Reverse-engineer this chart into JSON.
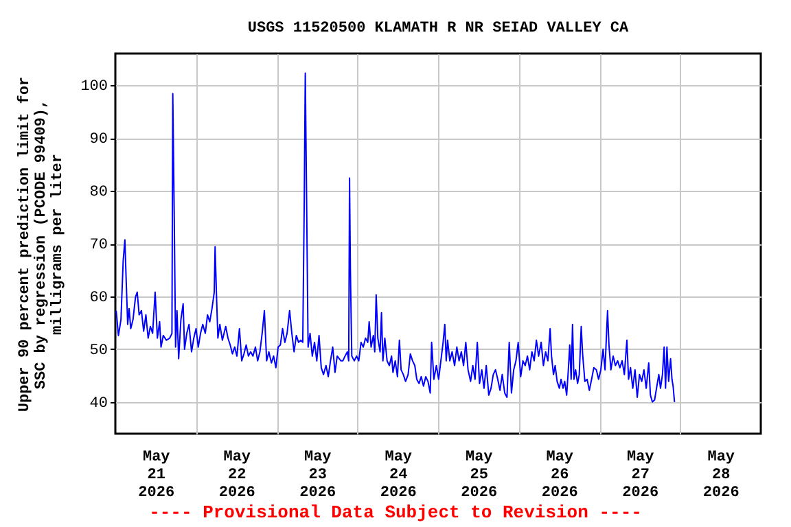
{
  "chart_data": {
    "type": "line",
    "title": "USGS 11520500 KLAMATH R NR SEIAD VALLEY CA",
    "ylabel": "Upper 90 percent prediction limit for\nSSC by regression (PCODE 99409),\nmilligrams per liter",
    "annotations": [
      "---- Provisional Data Subject to Revision ----"
    ],
    "xlim": [
      "2026-05-21",
      "2026-05-29"
    ],
    "ylim": [
      34,
      106
    ],
    "xticks": [
      {
        "value": "2026-05-21T12:00",
        "label": "May\n21\n2026"
      },
      {
        "value": "2026-05-22T12:00",
        "label": "May\n22\n2026"
      },
      {
        "value": "2026-05-23T12:00",
        "label": "May\n23\n2026"
      },
      {
        "value": "2026-05-24T12:00",
        "label": "May\n24\n2026"
      },
      {
        "value": "2026-05-25T12:00",
        "label": "May\n25\n2026"
      },
      {
        "value": "2026-05-26T12:00",
        "label": "May\n26\n2026"
      },
      {
        "value": "2026-05-27T12:00",
        "label": "May\n27\n2026"
      },
      {
        "value": "2026-05-28T12:00",
        "label": "May\n28\n2026"
      },
      {
        "value": "2026-05-22",
        "label": null
      },
      {
        "value": "2026-05-23",
        "label": null
      },
      {
        "value": "2026-05-24",
        "label": null
      },
      {
        "value": "2026-05-25",
        "label": null
      },
      {
        "value": "2026-05-26",
        "label": null
      },
      {
        "value": "2026-05-27",
        "label": null
      },
      {
        "value": "2026-05-28",
        "label": null
      }
    ],
    "yticks": [
      40,
      50,
      60,
      70,
      80,
      90,
      100
    ],
    "grid": true,
    "series": [
      {
        "color": "#0000ff",
        "x": [
          "2026-05-21T00:15",
          "2026-05-21T00:55",
          "2026-05-21T01:40",
          "2026-05-21T02:20",
          "2026-05-21T02:50",
          "2026-05-21T03:15",
          "2026-05-21T03:40",
          "2026-05-21T04:05",
          "2026-05-21T04:35",
          "2026-05-21T05:15",
          "2026-05-21T06:00",
          "2026-05-21T06:30",
          "2026-05-21T07:05",
          "2026-05-21T07:45",
          "2026-05-21T08:25",
          "2026-05-21T09:05",
          "2026-05-21T09:45",
          "2026-05-21T10:25",
          "2026-05-21T11:05",
          "2026-05-21T11:50",
          "2026-05-21T12:30",
          "2026-05-21T13:10",
          "2026-05-21T13:35",
          "2026-05-21T14:15",
          "2026-05-21T15:10",
          "2026-05-21T16:10",
          "2026-05-21T16:50",
          "2026-05-21T17:05",
          "2026-05-21T17:30",
          "2026-05-21T17:55",
          "2026-05-21T18:20",
          "2026-05-21T18:50",
          "2026-05-21T19:30",
          "2026-05-21T20:10",
          "2026-05-21T20:35",
          "2026-05-21T21:15",
          "2026-05-21T21:55",
          "2026-05-21T22:40",
          "2026-05-21T23:20",
          "2026-05-22T00:00",
          "2026-05-22T00:40",
          "2026-05-22T01:20",
          "2026-05-22T02:00",
          "2026-05-22T02:45",
          "2026-05-22T03:25",
          "2026-05-22T04:05",
          "2026-05-22T04:45",
          "2026-05-22T05:25",
          "2026-05-22T05:40",
          "2026-05-22T06:05",
          "2026-05-22T06:30",
          "2026-05-22T07:05",
          "2026-05-22T07:50",
          "2026-05-22T08:50",
          "2026-05-22T09:30",
          "2026-05-22T10:10",
          "2026-05-22T10:50",
          "2026-05-22T11:30",
          "2026-05-22T12:10",
          "2026-05-22T12:55",
          "2026-05-22T13:35",
          "2026-05-22T14:15",
          "2026-05-22T14:55",
          "2026-05-22T15:35",
          "2026-05-22T16:15",
          "2026-05-22T16:55",
          "2026-05-22T17:40",
          "2026-05-22T18:20",
          "2026-05-22T19:00",
          "2026-05-22T19:40",
          "2026-05-22T20:20",
          "2026-05-22T21:00",
          "2026-05-22T21:40",
          "2026-05-22T22:25",
          "2026-05-22T23:05",
          "2026-05-22T23:45",
          "2026-05-23T00:25",
          "2026-05-23T01:05",
          "2026-05-23T01:45",
          "2026-05-23T02:25",
          "2026-05-23T03:05",
          "2026-05-23T03:50",
          "2026-05-23T04:30",
          "2026-05-23T05:10",
          "2026-05-23T05:50",
          "2026-05-23T06:30",
          "2026-05-23T07:10",
          "2026-05-23T07:45",
          "2026-05-23T08:10",
          "2026-05-23T08:30",
          "2026-05-23T08:55",
          "2026-05-23T09:20",
          "2026-05-23T09:55",
          "2026-05-23T10:35",
          "2026-05-23T11:15",
          "2026-05-23T11:55",
          "2026-05-23T12:35",
          "2026-05-23T13:15",
          "2026-05-23T13:55",
          "2026-05-23T14:40",
          "2026-05-23T15:20",
          "2026-05-23T16:00",
          "2026-05-23T16:40",
          "2026-05-23T17:20",
          "2026-05-23T18:00",
          "2026-05-23T19:05",
          "2026-05-23T19:40",
          "2026-05-23T20:20",
          "2026-05-23T21:00",
          "2026-05-23T21:25",
          "2026-05-23T21:40",
          "2026-05-23T21:55",
          "2026-05-23T22:20",
          "2026-05-23T23:05",
          "2026-05-23T23:45",
          "2026-05-24T00:25",
          "2026-05-24T01:05",
          "2026-05-24T01:45",
          "2026-05-24T02:25",
          "2026-05-24T03:05",
          "2026-05-24T03:30",
          "2026-05-24T04:05",
          "2026-05-24T04:45",
          "2026-05-24T05:10",
          "2026-05-24T05:35",
          "2026-05-24T06:05",
          "2026-05-24T06:45",
          "2026-05-24T07:10",
          "2026-05-24T07:35",
          "2026-05-24T08:10",
          "2026-05-24T08:50",
          "2026-05-24T09:30",
          "2026-05-24T10:10",
          "2026-05-24T10:35",
          "2026-05-24T11:15",
          "2026-05-24T11:55",
          "2026-05-24T12:30",
          "2026-05-24T13:00",
          "2026-05-24T13:40",
          "2026-05-24T14:20",
          "2026-05-24T15:05",
          "2026-05-24T15:45",
          "2026-05-24T16:25",
          "2026-05-24T17:05",
          "2026-05-24T17:40",
          "2026-05-24T18:20",
          "2026-05-24T19:00",
          "2026-05-24T19:40",
          "2026-05-24T20:20",
          "2026-05-24T21:00",
          "2026-05-24T21:40",
          "2026-05-24T22:05",
          "2026-05-24T22:45",
          "2026-05-24T23:30",
          "2026-05-25T00:10",
          "2026-05-25T00:50",
          "2026-05-25T01:30",
          "2026-05-25T02:00",
          "2026-05-25T02:25",
          "2026-05-25T02:50",
          "2026-05-25T03:30",
          "2026-05-25T04:10",
          "2026-05-25T04:55",
          "2026-05-25T05:35",
          "2026-05-25T06:15",
          "2026-05-25T06:55",
          "2026-05-25T07:35",
          "2026-05-25T08:15",
          "2026-05-25T08:55",
          "2026-05-25T09:40",
          "2026-05-25T10:20",
          "2026-05-25T11:00",
          "2026-05-25T11:40",
          "2026-05-25T12:20",
          "2026-05-25T13:00",
          "2026-05-25T13:40",
          "2026-05-25T14:20",
          "2026-05-25T15:05",
          "2026-05-25T15:45",
          "2026-05-25T16:25",
          "2026-05-25T17:05",
          "2026-05-25T17:45",
          "2026-05-25T18:25",
          "2026-05-25T19:05",
          "2026-05-25T19:50",
          "2026-05-25T20:30",
          "2026-05-25T21:10",
          "2026-05-25T21:50",
          "2026-05-25T22:30",
          "2026-05-25T23:10",
          "2026-05-25T23:50",
          "2026-05-26T00:35",
          "2026-05-26T01:15",
          "2026-05-26T01:55",
          "2026-05-26T02:35",
          "2026-05-26T03:15",
          "2026-05-26T03:55",
          "2026-05-26T04:35",
          "2026-05-26T05:15",
          "2026-05-26T05:55",
          "2026-05-26T06:40",
          "2026-05-26T07:20",
          "2026-05-26T08:00",
          "2026-05-26T08:40",
          "2026-05-26T09:20",
          "2026-05-26T09:45",
          "2026-05-26T10:20",
          "2026-05-26T10:50",
          "2026-05-26T11:25",
          "2026-05-26T12:05",
          "2026-05-26T12:35",
          "2026-05-26T13:10",
          "2026-05-26T13:40",
          "2026-05-26T14:15",
          "2026-05-26T14:45",
          "2026-05-26T15:10",
          "2026-05-26T15:35",
          "2026-05-26T16:00",
          "2026-05-26T16:25",
          "2026-05-26T16:55",
          "2026-05-26T17:30",
          "2026-05-26T18:00",
          "2026-05-26T18:35",
          "2026-05-26T19:00",
          "2026-05-26T19:40",
          "2026-05-26T20:20",
          "2026-05-26T21:00",
          "2026-05-26T21:40",
          "2026-05-26T22:20",
          "2026-05-26T23:05",
          "2026-05-26T23:45",
          "2026-05-27T00:25",
          "2026-05-27T01:05",
          "2026-05-27T01:40",
          "2026-05-27T02:00",
          "2026-05-27T02:25",
          "2026-05-27T02:50",
          "2026-05-27T03:25",
          "2026-05-27T04:05",
          "2026-05-27T04:45",
          "2026-05-27T05:25",
          "2026-05-27T06:05",
          "2026-05-27T06:45",
          "2026-05-27T07:25",
          "2026-05-27T08:10",
          "2026-05-27T08:40",
          "2026-05-27T09:15",
          "2026-05-27T09:55",
          "2026-05-27T10:35",
          "2026-05-27T11:15",
          "2026-05-27T11:55",
          "2026-05-27T12:35",
          "2026-05-27T13:15",
          "2026-05-27T13:55",
          "2026-05-27T14:40",
          "2026-05-27T15:10",
          "2026-05-27T15:45",
          "2026-05-27T16:25",
          "2026-05-27T17:05",
          "2026-05-27T17:40",
          "2026-05-27T18:10",
          "2026-05-27T18:45",
          "2026-05-27T19:15",
          "2026-05-27T19:40",
          "2026-05-27T20:05",
          "2026-05-27T20:35",
          "2026-05-27T21:10",
          "2026-05-27T21:35",
          "2026-05-27T21:55",
          "2026-05-27T22:20"
        ],
        "values": [
          57.3,
          52.6,
          55.6,
          66.8,
          70.7,
          62.5,
          54.7,
          57.7,
          53.9,
          55.6,
          59.9,
          60.8,
          56.5,
          57.3,
          53.4,
          56.5,
          52.1,
          54.3,
          53,
          60.8,
          52.1,
          55.2,
          50.4,
          52.6,
          51.7,
          52.1,
          53,
          98.4,
          75.9,
          50.4,
          57.3,
          48.2,
          55.6,
          58.6,
          50,
          53,
          54.7,
          49.5,
          52.1,
          53.9,
          50.4,
          53,
          54.7,
          53,
          56.5,
          55.2,
          57.7,
          60.8,
          69.4,
          60.3,
          52.1,
          54.7,
          51.7,
          54.3,
          52.1,
          50.8,
          49.1,
          50.4,
          48.7,
          53.9,
          47.8,
          49.1,
          50.8,
          48.7,
          49.5,
          48.7,
          50.4,
          47.8,
          49.5,
          53,
          57.3,
          47.8,
          49.5,
          47.4,
          48.7,
          46.5,
          50.4,
          50.8,
          53.9,
          51.3,
          53,
          57.3,
          53,
          49.5,
          52.6,
          51.3,
          51.7,
          51.3,
          76.4,
          102.3,
          76.8,
          50.4,
          53,
          48.7,
          51.3,
          47.8,
          52.6,
          46.5,
          45.2,
          46.9,
          44.8,
          47.8,
          50.4,
          45.6,
          48.7,
          47.8,
          47.8,
          48.7,
          49.5,
          47.8,
          82.4,
          65.1,
          48.7,
          47.8,
          48.7,
          47.8,
          51.3,
          50.4,
          52.1,
          51.3,
          55.2,
          50.4,
          52.6,
          49.5,
          60.3,
          52.1,
          49.5,
          56.9,
          47.8,
          52.1,
          47.8,
          46.9,
          48.7,
          45.6,
          47.8,
          44.8,
          51.7,
          46.1,
          45.2,
          43.9,
          45.2,
          49.1,
          47.8,
          46.9,
          44.3,
          43.5,
          44.8,
          43,
          44.8,
          43.9,
          41.7,
          51.3,
          44.3,
          46.9,
          44.3,
          47.8,
          51.3,
          54.7,
          47.8,
          51.7,
          47.8,
          49.5,
          46.9,
          50.4,
          47.8,
          49.5,
          46.9,
          51.3,
          46.1,
          43.9,
          46.9,
          44.3,
          51.3,
          43.5,
          46.1,
          42.6,
          46.9,
          41.3,
          42.6,
          45.2,
          46.1,
          44.3,
          42.2,
          45.2,
          41.7,
          40.9,
          51.3,
          41.7,
          46.1,
          47.8,
          51.3,
          44.8,
          47.8,
          46.9,
          48.7,
          46.1,
          49.5,
          47.8,
          51.7,
          48.7,
          51.3,
          46.9,
          49.5,
          47.8,
          53.9,
          48.7,
          45.2,
          46.9,
          43.9,
          42.6,
          44.3,
          42.6,
          43.9,
          41.3,
          46.1,
          50.8,
          44.3,
          54.7,
          44.3,
          46.1,
          43.5,
          45.2,
          54.3,
          49.1,
          43.9,
          44.3,
          42.2,
          44.3,
          46.5,
          46.1,
          44.3,
          46.1,
          50,
          46.1,
          51.3,
          57.3,
          50.8,
          46.1,
          48.7,
          46.9,
          47.8,
          46.5,
          47.8,
          45.2,
          51.7,
          44.3,
          46.5,
          42.6,
          46.1,
          40.9,
          45.2,
          43.9,
          46.1,
          42.6,
          47.4,
          41.3,
          40,
          40.4,
          43,
          45.2,
          42.6,
          45.2,
          50.4,
          42.6,
          50.4,
          43.9,
          48.2,
          44.3,
          43,
          40
        ]
      }
    ]
  }
}
